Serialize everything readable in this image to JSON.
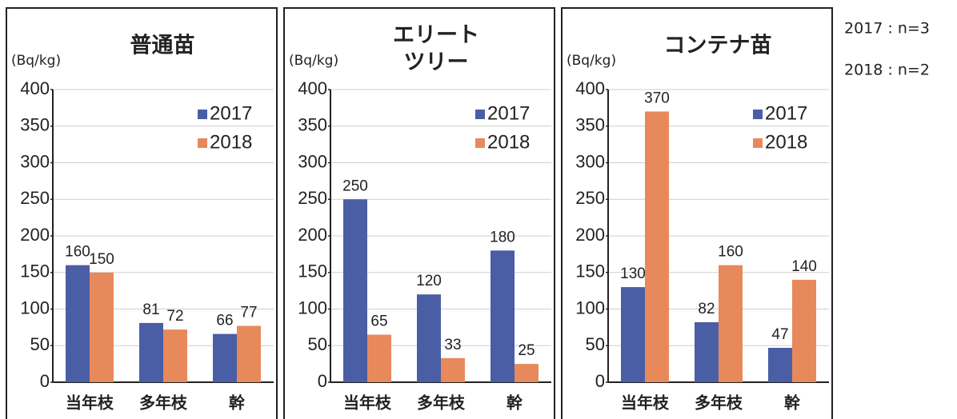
{
  "chart_data": [
    {
      "type": "bar",
      "title": "普通苗",
      "y_label": "(Bq/kg)",
      "categories": [
        "当年枝",
        "多年枝",
        "幹"
      ],
      "series": [
        {
          "name": "2017",
          "color": "#4a5ea6",
          "values": [
            160,
            81,
            66
          ]
        },
        {
          "name": "2018",
          "color": "#e8895c",
          "values": [
            150,
            72,
            77
          ]
        }
      ],
      "ylim": [
        0,
        400
      ],
      "yticks": [
        0,
        50,
        100,
        150,
        200,
        250,
        300,
        350,
        400
      ],
      "grid": true
    },
    {
      "type": "bar",
      "title": [
        "エリート",
        "ツリー"
      ],
      "y_label": "(Bq/kg)",
      "categories": [
        "当年枝",
        "多年枝",
        "幹"
      ],
      "series": [
        {
          "name": "2017",
          "color": "#4a5ea6",
          "values": [
            250,
            120,
            180
          ]
        },
        {
          "name": "2018",
          "color": "#e8895c",
          "values": [
            65,
            33,
            25
          ]
        }
      ],
      "ylim": [
        0,
        400
      ],
      "yticks": [
        0,
        50,
        100,
        150,
        200,
        250,
        300,
        350,
        400
      ],
      "grid": true
    },
    {
      "type": "bar",
      "title": "コンテナ苗",
      "y_label": "(Bq/kg)",
      "categories": [
        "当年枝",
        "多年枝",
        "幹"
      ],
      "series": [
        {
          "name": "2017",
          "color": "#4a5ea6",
          "values": [
            130,
            82,
            47
          ]
        },
        {
          "name": "2018",
          "color": "#e8895c",
          "values": [
            370,
            160,
            140
          ]
        }
      ],
      "ylim": [
        0,
        400
      ],
      "yticks": [
        0,
        50,
        100,
        150,
        200,
        250,
        300,
        350,
        400
      ],
      "grid": true
    }
  ],
  "notes": [
    "2017 : n=3",
    "2018 : n=2"
  ]
}
